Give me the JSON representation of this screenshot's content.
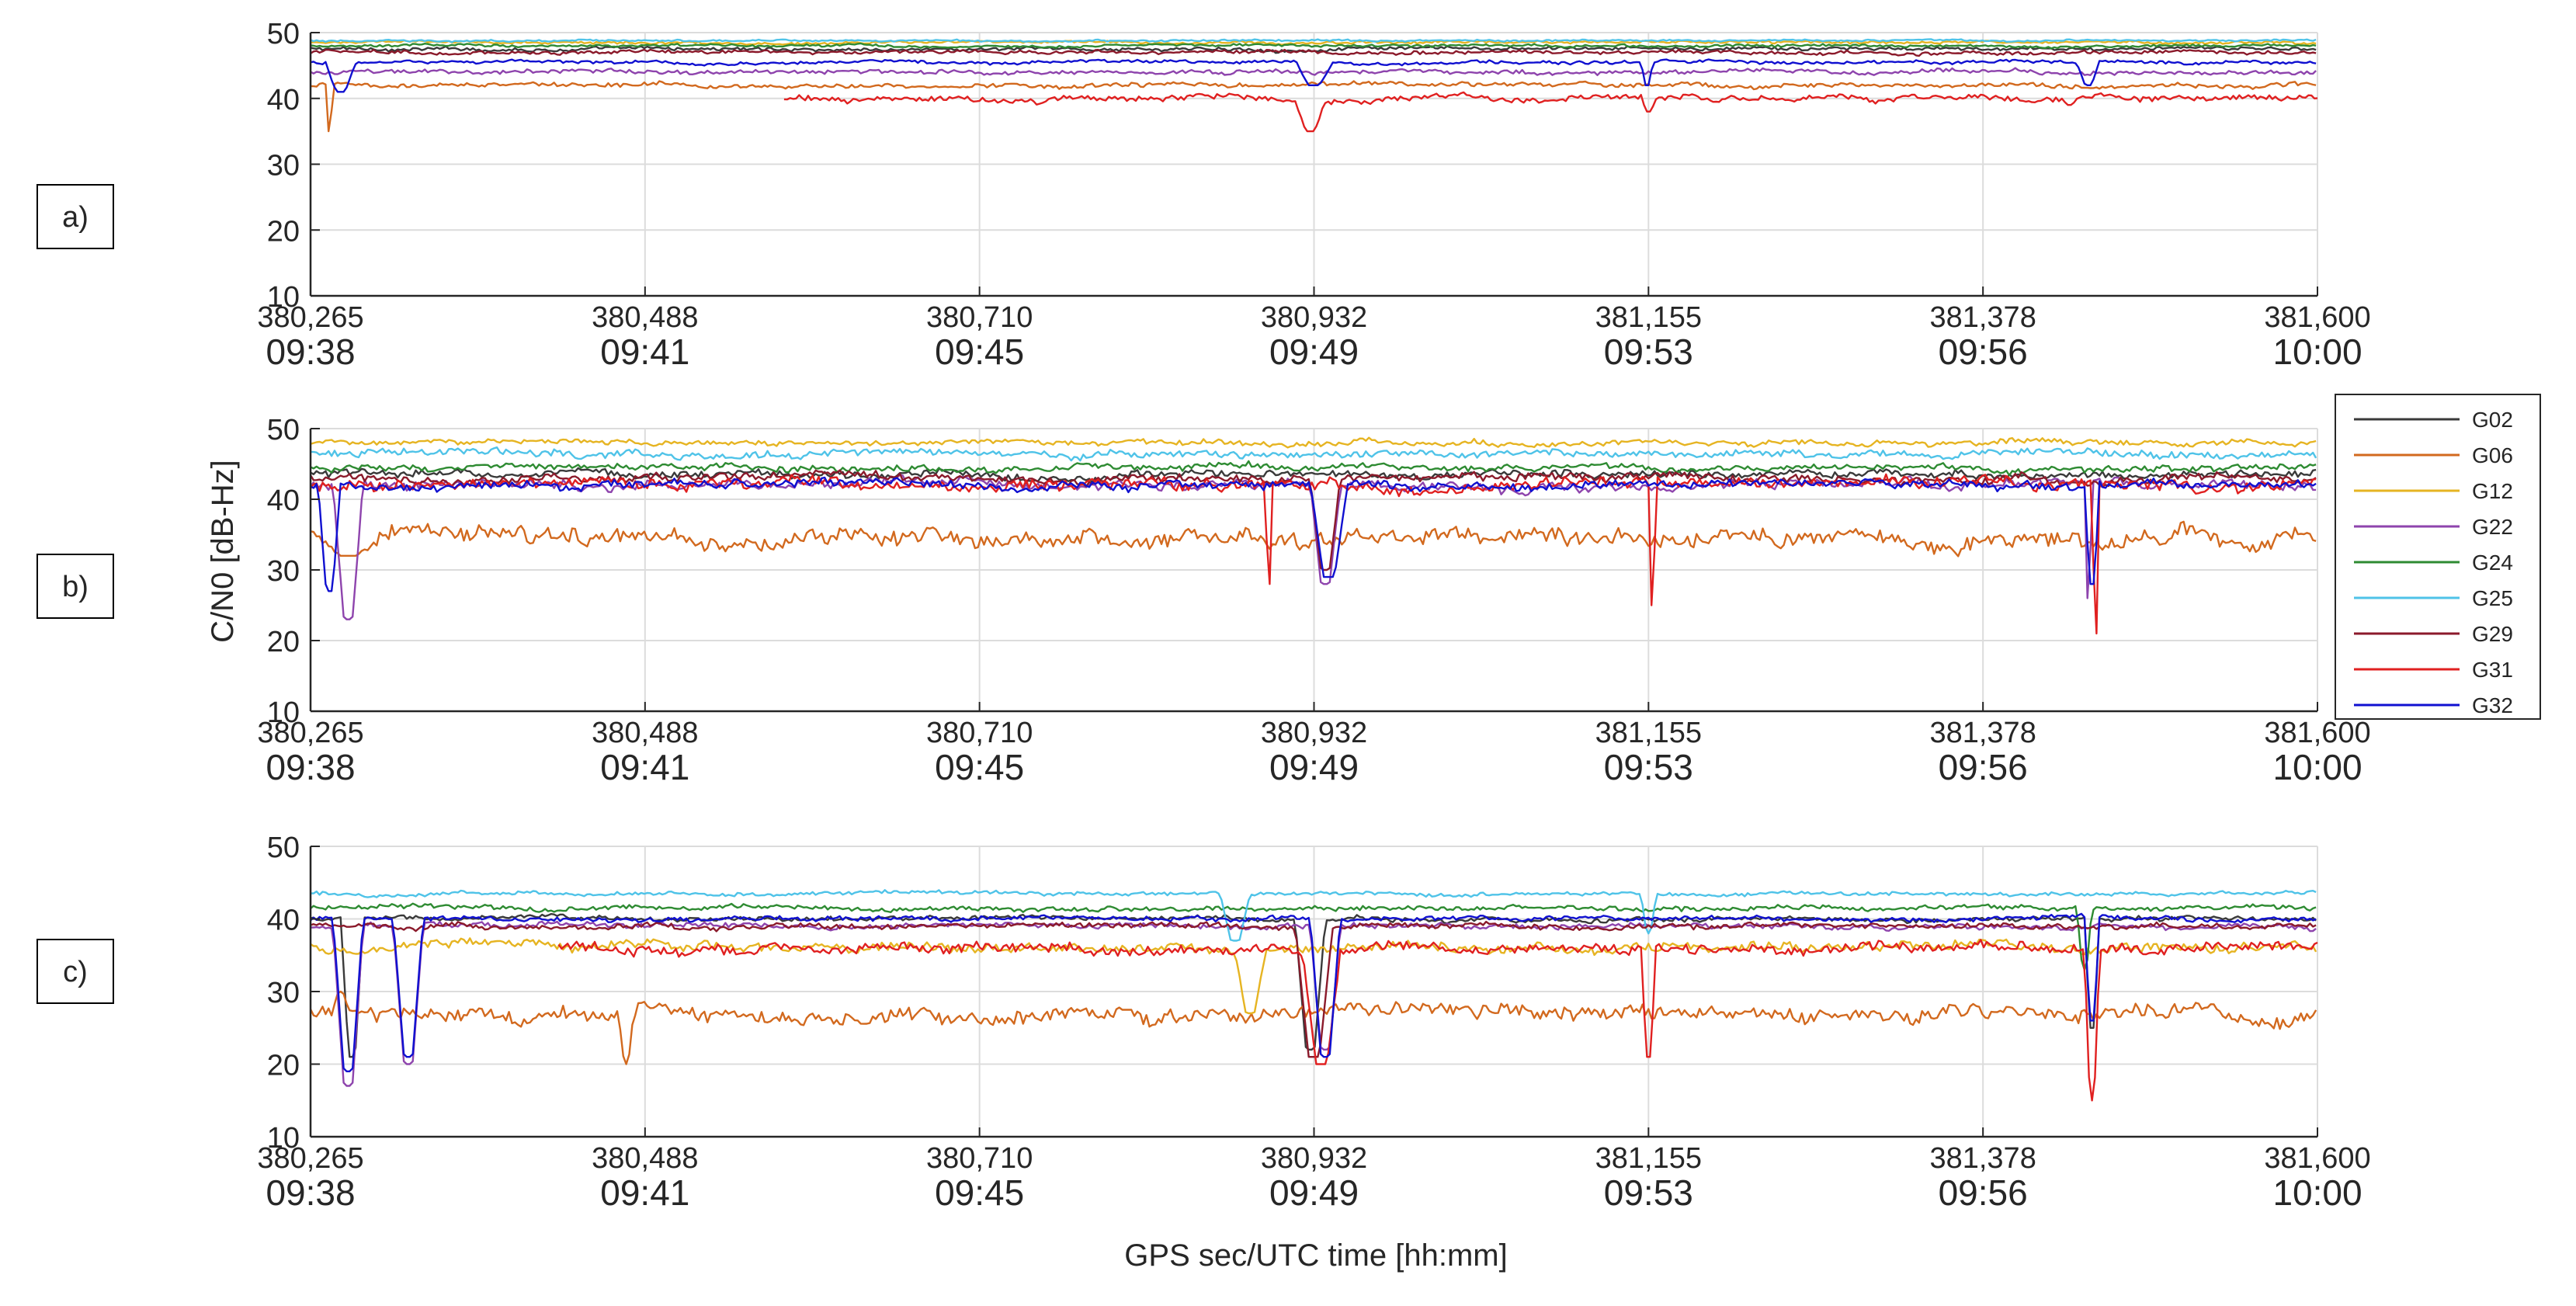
{
  "figure": {
    "y_label": "C/N0 [dB-Hz]",
    "x_label": "GPS sec/UTC time [hh:mm]"
  },
  "chart_data": {
    "type": "line",
    "x_ticks_gps": [
      "380,265",
      "380,488",
      "380,710",
      "380,932",
      "381,155",
      "381,378",
      "381,600"
    ],
    "x_ticks_utc": [
      "09:38",
      "09:41",
      "09:45",
      "09:49",
      "09:53",
      "09:56",
      "10:00"
    ],
    "xlim": [
      380265,
      381600
    ],
    "ylim": [
      10,
      50
    ],
    "y_ticks": [
      "10",
      "20",
      "30",
      "40",
      "50"
    ],
    "grid": true,
    "legend": {
      "placement": "right of panel b",
      "entries": [
        {
          "name": "G02",
          "color": "#3a3a3a"
        },
        {
          "name": "G06",
          "color": "#d2691e"
        },
        {
          "name": "G12",
          "color": "#e6b422"
        },
        {
          "name": "G22",
          "color": "#8e44ad"
        },
        {
          "name": "G24",
          "color": "#2e8b32"
        },
        {
          "name": "G25",
          "color": "#4fc3e8"
        },
        {
          "name": "G29",
          "color": "#8b1a2b"
        },
        {
          "name": "G31",
          "color": "#e02020"
        },
        {
          "name": "G32",
          "color": "#1010d0"
        }
      ]
    },
    "panels": [
      {
        "label": "a)",
        "series": [
          {
            "name": "G02",
            "base": 47.5,
            "noise": 0.4,
            "dips": []
          },
          {
            "name": "G06",
            "base": 42.0,
            "noise": 0.5,
            "dips": [
              [
                380275,
                380280,
                35
              ]
            ]
          },
          {
            "name": "G12",
            "base": 48.5,
            "noise": 0.3,
            "dips": []
          },
          {
            "name": "G22",
            "base": 44.0,
            "noise": 0.5,
            "dips": []
          },
          {
            "name": "G24",
            "base": 48.0,
            "noise": 0.3,
            "dips": []
          },
          {
            "name": "G25",
            "base": 48.8,
            "noise": 0.2,
            "dips": []
          },
          {
            "name": "G29",
            "base": 47.0,
            "noise": 0.4,
            "dips": []
          },
          {
            "name": "G31",
            "base": 40.0,
            "noise": 0.7,
            "start": 380580,
            "dips": [
              [
                380920,
                380940,
                35
              ],
              [
                381150,
                381160,
                38
              ],
              [
                381430,
                381440,
                39
              ]
            ]
          },
          {
            "name": "G32",
            "base": 45.5,
            "noise": 0.4,
            "dips": [
              [
                380275,
                380295,
                41
              ],
              [
                380920,
                380945,
                42
              ],
              [
                381150,
                381158,
                42
              ],
              [
                381440,
                381455,
                42
              ]
            ]
          }
        ]
      },
      {
        "label": "b)",
        "series": [
          {
            "name": "G02",
            "base": 43.5,
            "noise": 0.8,
            "dips": []
          },
          {
            "name": "G06",
            "base": 34.5,
            "noise": 1.8,
            "dips": [
              [
                380270,
                380310,
                32
              ]
            ]
          },
          {
            "name": "G12",
            "base": 48.0,
            "noise": 0.6,
            "dips": []
          },
          {
            "name": "G22",
            "base": 42.0,
            "noise": 1.0,
            "dips": [
              [
                380280,
                380300,
                23
              ],
              [
                380930,
                380950,
                28
              ],
              [
                381445,
                381450,
                26
              ]
            ]
          },
          {
            "name": "G24",
            "base": 44.5,
            "noise": 0.7,
            "dips": []
          },
          {
            "name": "G25",
            "base": 46.5,
            "noise": 0.8,
            "dips": []
          },
          {
            "name": "G29",
            "base": 43.0,
            "noise": 0.9,
            "dips": [
              [
                380930,
                380950,
                30
              ]
            ]
          },
          {
            "name": "G31",
            "base": 42.0,
            "noise": 1.2,
            "dips": [
              [
                380900,
                380905,
                28
              ],
              [
                381155,
                381160,
                25
              ],
              [
                381450,
                381455,
                21
              ]
            ]
          },
          {
            "name": "G32",
            "base": 42.0,
            "noise": 0.9,
            "dips": [
              [
                380270,
                380285,
                27
              ],
              [
                380930,
                380955,
                29
              ],
              [
                381445,
                381455,
                28
              ]
            ]
          }
        ]
      },
      {
        "label": "c)",
        "series": [
          {
            "name": "G02",
            "base": 40.0,
            "noise": 0.5,
            "dips": [
              [
                380285,
                380300,
                21
              ],
              [
                380920,
                380940,
                22
              ],
              [
                381445,
                381455,
                25
              ]
            ]
          },
          {
            "name": "G06",
            "base": 27.0,
            "noise": 1.6,
            "dips": [
              [
                380470,
                380480,
                20
              ],
              [
                380280,
                380290,
                30
              ]
            ]
          },
          {
            "name": "G12",
            "base": 36.0,
            "noise": 1.0,
            "dips": [
              [
                380880,
                380900,
                27
              ]
            ]
          },
          {
            "name": "G22",
            "base": 39.0,
            "noise": 0.6,
            "dips": [
              [
                380280,
                380300,
                17
              ],
              [
                380320,
                380340,
                20
              ],
              [
                380930,
                380950,
                22
              ]
            ]
          },
          {
            "name": "G24",
            "base": 41.5,
            "noise": 0.5,
            "dips": [
              [
                381440,
                381450,
                33
              ]
            ]
          },
          {
            "name": "G25",
            "base": 43.5,
            "noise": 0.4,
            "dips": [
              [
                380870,
                380890,
                37
              ],
              [
                381150,
                381160,
                38
              ]
            ]
          },
          {
            "name": "G29",
            "base": 39.0,
            "noise": 0.6,
            "dips": [
              [
                380920,
                380945,
                21
              ]
            ]
          },
          {
            "name": "G31",
            "base": 36.0,
            "noise": 1.1,
            "start": 380430,
            "dips": [
              [
                380925,
                380950,
                20
              ],
              [
                381150,
                381160,
                21
              ],
              [
                381445,
                381455,
                15
              ]
            ]
          },
          {
            "name": "G32",
            "base": 40.0,
            "noise": 0.5,
            "dips": [
              [
                380280,
                380300,
                19
              ],
              [
                380320,
                380340,
                21
              ],
              [
                380930,
                380950,
                21
              ],
              [
                381445,
                381455,
                26
              ]
            ]
          }
        ]
      }
    ]
  }
}
